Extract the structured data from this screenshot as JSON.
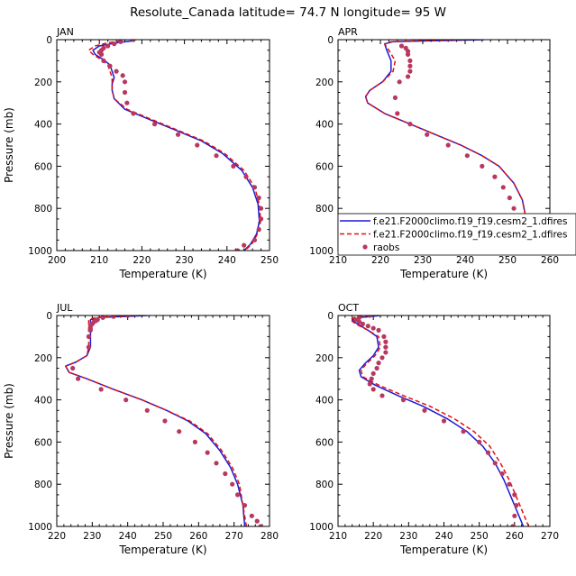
{
  "title": "Resolute_Canada  latitude= 74.7 N longitude= 95 W",
  "legend": {
    "entries": [
      {
        "label": "f.e21.F2000climo.f19_f19.cesm2_1.dfires",
        "color": "#1a1ad6",
        "style": "solid"
      },
      {
        "label": "f.e21.F2000climo.f19_f19.cesm2_1.dfires",
        "color": "#e01010",
        "style": "dashed"
      },
      {
        "label": "raobs",
        "color": "#b8385f",
        "style": "dot"
      }
    ]
  },
  "colors": {
    "model_a": "#1a1ad6",
    "model_b": "#e01010",
    "obs": "#b8385f"
  },
  "chart_data": [
    {
      "type": "line",
      "title": "JAN",
      "xlabel": "Temperature (K)",
      "ylabel": "Pressure (mb)",
      "xlim": [
        200,
        250
      ],
      "ylim": [
        1000,
        0
      ],
      "xticks": [
        200,
        210,
        220,
        230,
        240,
        250
      ],
      "yticks": [
        0,
        200,
        400,
        600,
        800,
        1000
      ],
      "series": [
        {
          "name": "f.e21.F2000climo.f19_f19.cesm2_1.dfires",
          "style": "solid",
          "x": [
            218,
            214,
            210,
            208.5,
            209,
            211,
            212.5,
            213,
            213.5,
            213,
            213,
            213.5,
            216,
            222,
            228,
            234,
            239,
            243.5,
            246,
            247.3,
            247.6,
            247,
            245.5,
            244
          ],
          "y": [
            5,
            15,
            30,
            50,
            70,
            95,
            120,
            150,
            180,
            210,
            240,
            280,
            330,
            380,
            430,
            480,
            540,
            620,
            700,
            780,
            860,
            920,
            970,
            1000
          ]
        },
        {
          "name": "f.e21.F2000climo.f19_f19.cesm2_1.dfires",
          "style": "dashed",
          "x": [
            215,
            212,
            209,
            207.5,
            208.5,
            210.5,
            212,
            212.5,
            213,
            213,
            213,
            213.5,
            216.5,
            222.5,
            228.5,
            234.5,
            239.5,
            244,
            246.5,
            247.6,
            247.9,
            247.2,
            245.8,
            244.2
          ],
          "y": [
            5,
            15,
            30,
            50,
            70,
            95,
            120,
            150,
            180,
            210,
            240,
            280,
            330,
            380,
            430,
            480,
            540,
            620,
            700,
            780,
            860,
            920,
            970,
            1000
          ]
        },
        {
          "name": "raobs",
          "style": "dot",
          "x": [
            218,
            215,
            213.5,
            212,
            211,
            210.5,
            210,
            210.5,
            211,
            212.5,
            214,
            215.5,
            216,
            216,
            216.5,
            218,
            223,
            228.5,
            233,
            237.5,
            241.5,
            244.5,
            246.5,
            247.5,
            248,
            248,
            247.5,
            246.5,
            244,
            242.5
          ],
          "y": [
            0,
            10,
            20,
            30,
            40,
            50,
            60,
            70,
            100,
            125,
            150,
            170,
            200,
            250,
            300,
            350,
            400,
            450,
            500,
            550,
            600,
            650,
            700,
            750,
            800,
            850,
            900,
            950,
            975,
            1000
          ]
        }
      ]
    },
    {
      "type": "line",
      "title": "APR",
      "xlabel": "Temperature (K)",
      "ylabel": "Pressure (mb)",
      "xlim": [
        210,
        260
      ],
      "ylim": [
        1000,
        0
      ],
      "xticks": [
        210,
        220,
        230,
        240,
        250,
        260
      ],
      "yticks": [
        0,
        200,
        400,
        600,
        800,
        1000
      ],
      "series": [
        {
          "name": "f.e21.F2000climo.f19_f19.cesm2_1.dfires",
          "style": "solid",
          "x": [
            244.5,
            232,
            223,
            221,
            221.5,
            222.5,
            222.5,
            220.5,
            217.5,
            216.5,
            217,
            221,
            227,
            233,
            239,
            244,
            248,
            251.5,
            253.5,
            254.3,
            254.5,
            254.5,
            254.8
          ],
          "y": [
            0,
            5,
            10,
            20,
            50,
            100,
            150,
            200,
            240,
            270,
            300,
            350,
            400,
            450,
            500,
            550,
            600,
            680,
            760,
            840,
            900,
            950,
            1000
          ]
        },
        {
          "name": "f.e21.F2000climo.f19_f19.cesm2_1.dfires",
          "style": "dashed",
          "x": [
            240,
            230,
            222.5,
            221,
            222,
            223.5,
            223,
            220.5,
            217.5,
            216.5,
            217,
            221,
            227,
            233,
            239,
            244,
            248,
            251.5,
            253.5,
            254.3,
            254.5,
            254.5,
            254.6
          ],
          "y": [
            0,
            5,
            10,
            20,
            50,
            100,
            150,
            200,
            240,
            270,
            300,
            350,
            400,
            450,
            500,
            550,
            600,
            680,
            760,
            840,
            900,
            950,
            1000
          ]
        },
        {
          "name": "raobs",
          "style": "dot",
          "x": [
            225,
            226,
            226.5,
            226.5,
            227,
            227,
            227,
            226.5,
            224.5,
            223.5,
            224,
            227,
            231,
            236,
            240.5,
            244,
            247,
            249,
            250.5,
            251.5,
            252,
            251.5,
            251.5,
            251.5
          ],
          "y": [
            30,
            40,
            55,
            70,
            100,
            125,
            150,
            175,
            200,
            275,
            350,
            400,
            450,
            500,
            550,
            600,
            650,
            700,
            750,
            800,
            850,
            900,
            950,
            1000
          ]
        }
      ]
    },
    {
      "type": "line",
      "title": "JUL",
      "xlabel": "Temperature (K)",
      "ylabel": "Pressure (mb)",
      "xlim": [
        220,
        280
      ],
      "ylim": [
        1000,
        0
      ],
      "xticks": [
        220,
        230,
        240,
        250,
        260,
        270,
        280
      ],
      "yticks": [
        0,
        200,
        400,
        600,
        800,
        1000
      ],
      "series": [
        {
          "name": "f.e21.F2000climo.f19_f19.cesm2_1.dfires",
          "style": "solid",
          "x": [
            245.5,
            238,
            232,
            229.5,
            229.5,
            229.5,
            229.5,
            228.5,
            225.5,
            222.5,
            223.5,
            228.5,
            236,
            244,
            251,
            257,
            262,
            266,
            269,
            271,
            272.5,
            273
          ],
          "y": [
            0,
            5,
            10,
            20,
            50,
            100,
            150,
            190,
            220,
            240,
            270,
            300,
            350,
            400,
            450,
            500,
            560,
            640,
            720,
            800,
            900,
            1000
          ]
        },
        {
          "name": "f.e21.F2000climo.f19_f19.cesm2_1.dfires",
          "style": "dashed",
          "x": [
            243,
            236,
            231,
            229,
            229,
            229,
            229,
            228.5,
            225.5,
            222.5,
            223.5,
            228.5,
            236,
            244,
            251,
            257.5,
            262.5,
            266.5,
            269.5,
            271.5,
            272.5,
            273.5
          ],
          "y": [
            0,
            5,
            10,
            20,
            50,
            100,
            150,
            190,
            220,
            240,
            270,
            300,
            350,
            400,
            450,
            500,
            560,
            640,
            720,
            800,
            900,
            1000
          ]
        },
        {
          "name": "raobs",
          "style": "dot",
          "x": [
            240,
            236,
            233,
            231.5,
            231,
            230.5,
            230,
            229.5,
            229.5,
            229.5,
            229,
            229,
            224.5,
            226,
            232.5,
            239.5,
            245.5,
            250.5,
            254.5,
            259,
            262.5,
            265,
            267.5,
            269.5,
            271,
            273,
            275,
            276.5,
            277.5
          ],
          "y": [
            0,
            5,
            10,
            20,
            25,
            30,
            40,
            50,
            60,
            70,
            100,
            150,
            250,
            300,
            350,
            400,
            450,
            500,
            550,
            600,
            650,
            700,
            750,
            800,
            850,
            900,
            950,
            975,
            1000
          ]
        }
      ]
    },
    {
      "type": "line",
      "title": "OCT",
      "xlabel": "Temperature (K)",
      "ylabel": "Pressure (mb)",
      "xlim": [
        210,
        270
      ],
      "ylim": [
        1000,
        0
      ],
      "xticks": [
        210,
        220,
        230,
        240,
        250,
        260,
        270
      ],
      "yticks": [
        0,
        200,
        400,
        600,
        800,
        1000
      ],
      "series": [
        {
          "name": "f.e21.F2000climo.f19_f19.cesm2_1.dfires",
          "style": "solid",
          "x": [
            222,
            216,
            214,
            215.5,
            218.5,
            221,
            221.5,
            220,
            217.5,
            216,
            216.5,
            220.5,
            227,
            234,
            241,
            246.5,
            251,
            254.5,
            257,
            259,
            260.5,
            262.5
          ],
          "y": [
            0,
            10,
            20,
            40,
            70,
            100,
            150,
            190,
            230,
            260,
            290,
            330,
            380,
            430,
            490,
            550,
            620,
            700,
            780,
            860,
            920,
            1000
          ]
        },
        {
          "name": "f.e21.F2000climo.f19_f19.cesm2_1.dfires",
          "style": "dashed",
          "x": [
            219,
            214.5,
            213.5,
            215,
            218.5,
            221.5,
            222,
            220.5,
            218,
            216.5,
            217,
            221.5,
            228.5,
            236,
            243,
            248.5,
            253,
            256,
            258.5,
            260.5,
            262,
            264
          ],
          "y": [
            0,
            10,
            20,
            40,
            70,
            100,
            150,
            190,
            230,
            260,
            290,
            330,
            380,
            430,
            490,
            550,
            620,
            700,
            780,
            860,
            920,
            1000
          ]
        },
        {
          "name": "raobs",
          "style": "dot",
          "x": [
            219,
            216,
            215,
            216,
            217,
            218.5,
            220,
            221.5,
            223,
            223.5,
            223.5,
            223.5,
            222.5,
            221.5,
            221,
            220,
            219.5,
            219,
            220,
            222.5,
            228.5,
            234.5,
            240,
            245.5,
            250,
            252.5,
            254.5,
            256.5,
            258.5,
            260,
            260.5,
            260,
            259.5
          ],
          "y": [
            0,
            10,
            20,
            30,
            40,
            50,
            60,
            70,
            100,
            125,
            150,
            175,
            200,
            225,
            250,
            275,
            300,
            325,
            350,
            380,
            400,
            450,
            500,
            550,
            600,
            650,
            700,
            750,
            800,
            850,
            900,
            950,
            1000
          ]
        }
      ]
    }
  ]
}
